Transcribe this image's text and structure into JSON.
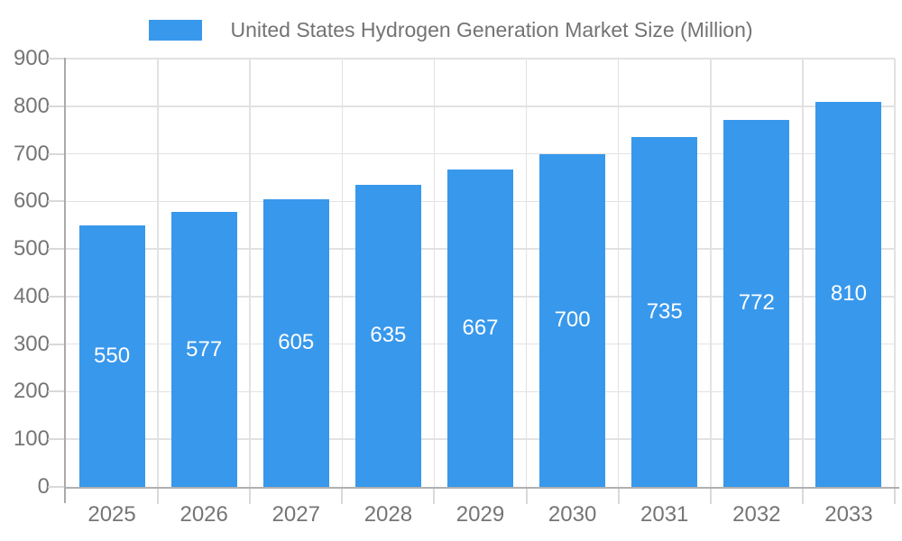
{
  "legend": {
    "label": "United States Hydrogen Generation Market Size (Million)"
  },
  "colors": {
    "bar": "#3898EC",
    "grid_line": "#e2e2e2",
    "axis_line": "#aaaaaa",
    "x_axis_line": "#b0b0b0",
    "tick_line": "#d9d9d9",
    "tick_label": "#757575",
    "legend_text": "#737373",
    "bar_label": "#ffffff",
    "background": "#ffffff"
  },
  "chart_data": {
    "type": "bar",
    "title": "United States Hydrogen Generation Market Size (Million)",
    "series_name": "United States Hydrogen Generation Market Size (Million)",
    "categories": [
      "2025",
      "2026",
      "2027",
      "2028",
      "2029",
      "2030",
      "2031",
      "2032",
      "2033"
    ],
    "values": [
      550,
      577,
      605,
      635,
      667,
      700,
      735,
      772,
      810
    ],
    "bar_value_labels": [
      "550",
      "577",
      "605",
      "635",
      "667",
      "700",
      "735",
      "772",
      "810"
    ],
    "xlabel": "",
    "ylabel": "",
    "ylim": [
      0,
      900
    ],
    "yticks": [
      0,
      100,
      200,
      300,
      400,
      500,
      600,
      700,
      800,
      900
    ],
    "grid": true,
    "legend_position": "top-center",
    "bar_labels_position": "inside-center"
  }
}
